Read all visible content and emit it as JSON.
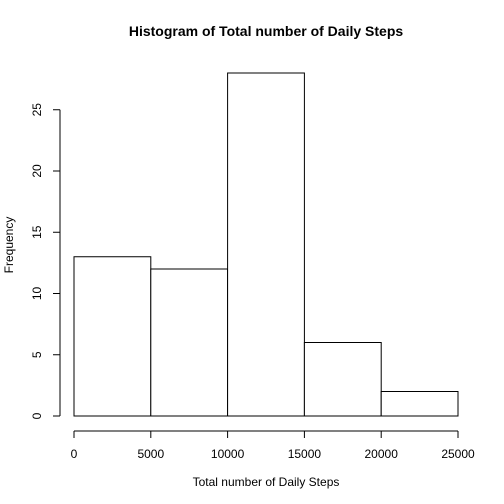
{
  "chart_data": {
    "type": "histogram",
    "title": "Histogram of Total number of Daily Steps",
    "xlabel": "Total number of Daily Steps",
    "ylabel": "Frequency",
    "bins": [
      {
        "start": 0,
        "end": 5000,
        "count": 13
      },
      {
        "start": 5000,
        "end": 10000,
        "count": 12
      },
      {
        "start": 10000,
        "end": 15000,
        "count": 28
      },
      {
        "start": 15000,
        "end": 20000,
        "count": 6
      },
      {
        "start": 20000,
        "end": 25000,
        "count": 2
      }
    ],
    "xlim": [
      0,
      25000
    ],
    "ylim": [
      0,
      28
    ],
    "x_ticks": [
      0,
      5000,
      10000,
      15000,
      20000,
      25000
    ],
    "y_ticks": [
      0,
      5,
      10,
      15,
      20,
      25
    ],
    "grid": false,
    "legend": "none",
    "colors": {
      "bar_fill": "#ffffff",
      "bar_stroke": "#000000"
    }
  }
}
